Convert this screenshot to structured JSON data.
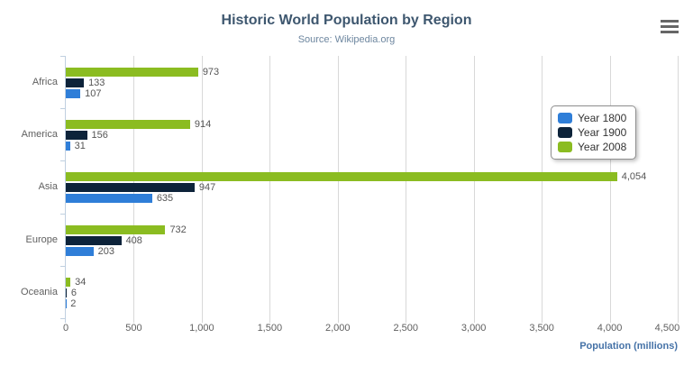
{
  "header": {
    "title": "Historic World Population by Region",
    "subtitle": "Source: Wikipedia.org"
  },
  "export_menu": {
    "icon": "hamburger-menu-icon"
  },
  "colors": {
    "title": "#3E576F",
    "subtitle": "#6D869F",
    "axis_title": "#4572A7",
    "gridline": "#D8D8D8",
    "axis_line": "#C0D0E0",
    "series_year_1800": "#2f7ed8",
    "series_year_1900": "#0d233a",
    "series_year_2008": "#8bbc21"
  },
  "chart_data": {
    "type": "bar",
    "orientation": "horizontal",
    "title": "Historic World Population by Region",
    "subtitle": "Source: Wikipedia.org",
    "categories": [
      "Africa",
      "America",
      "Asia",
      "Europe",
      "Oceania"
    ],
    "series": [
      {
        "name": "Year 1800",
        "color": "#2f7ed8",
        "values": [
          107,
          31,
          635,
          203,
          2
        ],
        "labels": [
          "107",
          "31",
          "635",
          "203",
          "2"
        ]
      },
      {
        "name": "Year 1900",
        "color": "#0d233a",
        "values": [
          133,
          156,
          947,
          408,
          6
        ],
        "labels": [
          "133",
          "156",
          "947",
          "408",
          "6"
        ]
      },
      {
        "name": "Year 2008",
        "color": "#8bbc21",
        "values": [
          973,
          914,
          4054,
          732,
          34
        ],
        "labels": [
          "973",
          "914",
          "4,054",
          "732",
          "34"
        ]
      }
    ],
    "bar_render_order_top_to_bottom": [
      "Year 2008",
      "Year 1900",
      "Year 1800"
    ],
    "xlabel": "Population (millions)",
    "ylabel": "",
    "xlim": [
      0,
      4500
    ],
    "x_ticks": [
      "0",
      "500",
      "1,000",
      "1,500",
      "2,000",
      "2,500",
      "3,000",
      "3,500",
      "4,000",
      "4,500"
    ],
    "grid": true,
    "legend_position": "right"
  },
  "legend": {
    "items": [
      {
        "label": "Year 1800",
        "color": "#2f7ed8"
      },
      {
        "label": "Year 1900",
        "color": "#0d233a"
      },
      {
        "label": "Year 2008",
        "color": "#8bbc21"
      }
    ]
  }
}
